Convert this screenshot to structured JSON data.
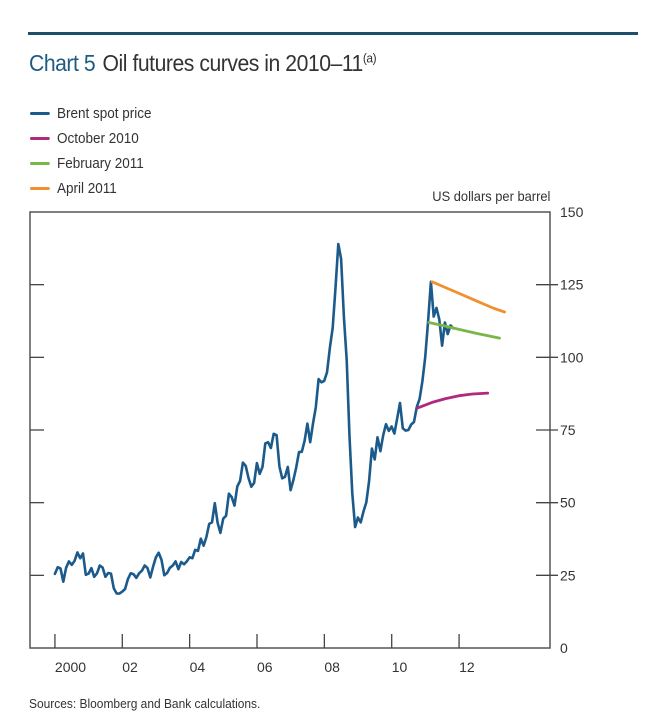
{
  "chart_data": {
    "type": "line",
    "title_number": "Chart 5",
    "title": "Oil futures curves in 2010–11",
    "title_note": "(a)",
    "ylabel": "US dollars per barrel",
    "ylim": [
      0,
      150
    ],
    "yticks": [
      0,
      25,
      50,
      75,
      100,
      125,
      150
    ],
    "xlim": [
      1999.26,
      2014.7
    ],
    "xticks": [
      2000,
      2002,
      2004,
      2006,
      2008,
      2010,
      2012
    ],
    "xtick_labels": [
      "2000",
      "02",
      "04",
      "06",
      "08",
      "10",
      "12"
    ],
    "grid": false,
    "legend_position": "top-left",
    "source": "Sources:  Bloomberg and Bank calculations.",
    "series": [
      {
        "name": "Brent spot price",
        "color": "#1b5a8a",
        "start": 2000.0,
        "step": 0.0833,
        "values": [
          25.5,
          27.8,
          27.4,
          22.8,
          27.6,
          29.8,
          28.6,
          30.0,
          32.9,
          30.9,
          32.5,
          25.2,
          25.6,
          27.5,
          24.5,
          25.7,
          28.4,
          27.7,
          24.5,
          25.8,
          25.6,
          20.5,
          18.8,
          18.7,
          19.4,
          20.3,
          23.7,
          25.7,
          25.4,
          24.1,
          25.7,
          26.6,
          28.4,
          27.5,
          24.3,
          28.0,
          31.2,
          32.8,
          30.3,
          25.0,
          25.8,
          27.6,
          28.4,
          29.8,
          27.1,
          29.6,
          28.8,
          29.8,
          31.2,
          30.9,
          33.8,
          33.4,
          37.6,
          35.2,
          38.2,
          42.7,
          43.2,
          49.8,
          43.1,
          39.6,
          44.5,
          45.5,
          53.1,
          51.9,
          49.0,
          55.6,
          57.5,
          63.8,
          62.7,
          58.5,
          55.5,
          56.8,
          63.6,
          59.9,
          62.3,
          70.4,
          70.8,
          68.8,
          73.7,
          73.2,
          62.5,
          58.4,
          58.9,
          62.3,
          54.3,
          57.8,
          62.1,
          67.4,
          67.5,
          71.3,
          77.2,
          70.8,
          77.2,
          82.8,
          92.5,
          91.4,
          91.9,
          94.8,
          103.3,
          110.2,
          123.9,
          139.0,
          133.9,
          113.9,
          99.1,
          72.8,
          53.2,
          41.6,
          44.9,
          43.2,
          47.0,
          50.1,
          57.5,
          68.6,
          64.9,
          72.5,
          67.7,
          73.2,
          77.0,
          74.7,
          76.2,
          73.8,
          79.0,
          84.3,
          75.6,
          74.8,
          75.0,
          76.9,
          77.8,
          82.9,
          85.7,
          91.8,
          100.0,
          112.0,
          126.0,
          114.0,
          117.0,
          113.0,
          104.0,
          112.0,
          108.0,
          111.0,
          110.0
        ]
      },
      {
        "name": "October 2010",
        "color": "#b0297e",
        "x": [
          2010.77,
          2011.2,
          2011.6,
          2012.0,
          2012.4,
          2012.85
        ],
        "values": [
          82.6,
          84.5,
          85.8,
          86.8,
          87.4,
          87.7
        ]
      },
      {
        "name": "February 2011",
        "color": "#7ab648",
        "x": [
          2011.1,
          2011.5,
          2012.0,
          2012.5,
          2013.2
        ],
        "values": [
          112.0,
          111.0,
          109.6,
          108.3,
          106.6
        ]
      },
      {
        "name": "April 2011",
        "color": "#f0902e",
        "x": [
          2011.2,
          2011.6,
          2012.0,
          2012.5,
          2013.0,
          2013.35
        ],
        "values": [
          126.0,
          124.0,
          122.0,
          119.5,
          117.0,
          115.6
        ]
      }
    ]
  }
}
